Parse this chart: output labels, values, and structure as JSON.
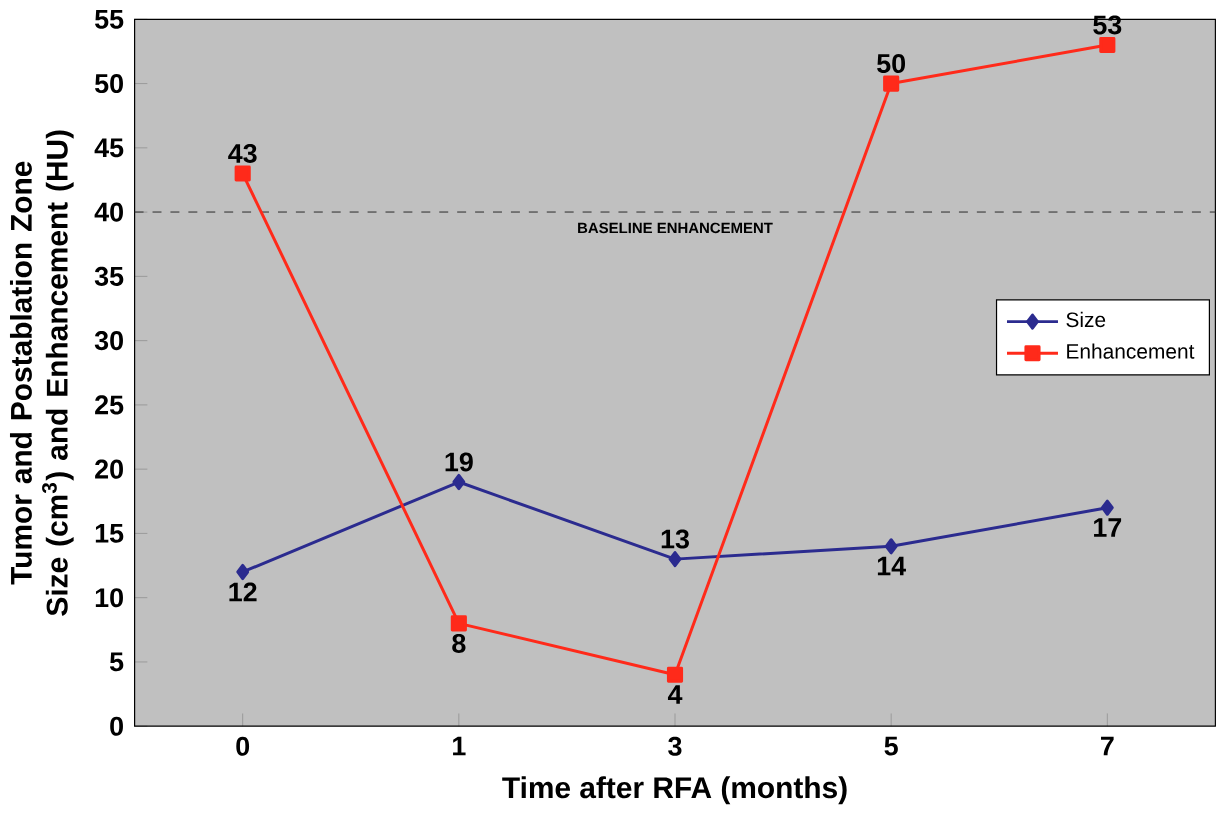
{
  "chart_data": {
    "type": "line",
    "xlabel": "Time after RFA (months)",
    "ylabel": "Tumor and Postablation Zone Size (cm$^{3}$) and Enhancement (HU)",
    "categories": [
      "0",
      "1",
      "3",
      "5",
      "7"
    ],
    "series": [
      {
        "name": "Size",
        "color": "#2b2b8f",
        "marker": "diamond",
        "values": [
          12,
          19,
          13,
          14,
          17
        ]
      },
      {
        "name": "Enhancement",
        "color": "#ff2a1a",
        "marker": "square",
        "values": [
          43,
          8,
          4,
          50,
          53
        ]
      }
    ],
    "ylim": [
      0,
      55
    ],
    "yticks": [
      0,
      5,
      10,
      15,
      20,
      25,
      30,
      35,
      40,
      45,
      50,
      55
    ],
    "ref_lines": [
      {
        "axis": "y",
        "value": 40,
        "label": "BASELINE ENHANCEMENT",
        "color": "#333333",
        "line_style": "dashed"
      }
    ],
    "data_labels": true,
    "legend": "right",
    "grid": false
  }
}
